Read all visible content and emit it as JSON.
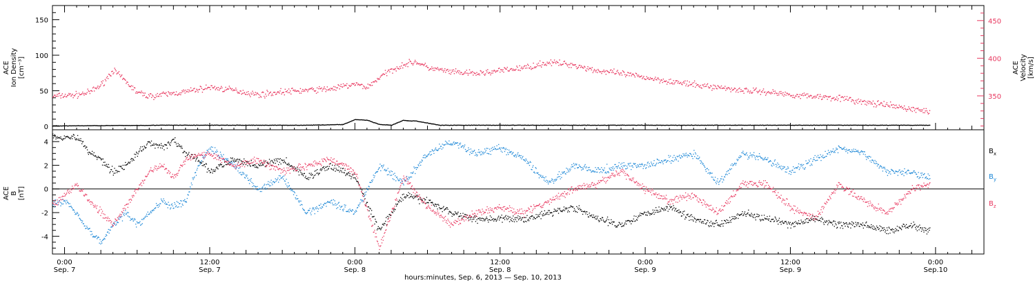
{
  "colors": {
    "density": "#000000",
    "velocity": "#e8365e",
    "bx": "#000000",
    "by": "#1a86d6",
    "bz": "#e8365e"
  },
  "top_panel": {
    "ylabel_lines": [
      "ACE",
      "Ion Density",
      "[cm⁻³]"
    ],
    "y2label_lines": [
      "ACE",
      "Velocity",
      "[km/s]"
    ]
  },
  "bottom_panel": {
    "ylabel_lines": [
      "ACE",
      "B",
      "[nT]"
    ],
    "legend": [
      "Bx",
      "By",
      "Bz"
    ]
  },
  "x_axis": {
    "title": "hours:minutes, Sep.  6, 2013 — Sep. 10, 2013",
    "ticks": [
      {
        "hours": 0,
        "time": "0:00",
        "date": "Sep. 7"
      },
      {
        "hours": 12,
        "time": "12:00",
        "date": "Sep. 7"
      },
      {
        "hours": 24,
        "time": "0:00",
        "date": "Sep. 8"
      },
      {
        "hours": 36,
        "time": "12:00",
        "date": "Sep. 8"
      },
      {
        "hours": 48,
        "time": "0:00",
        "date": "Sep. 9"
      },
      {
        "hours": 60,
        "time": "12:00",
        "date": "Sep. 9"
      },
      {
        "hours": 72,
        "time": "0:00",
        "date": "Sep.10"
      }
    ]
  },
  "chart_data": [
    {
      "type": "scatter",
      "panel": "top",
      "xlim_hours_from_sep7_0000": [
        -1,
        76
      ],
      "ylim": [
        -5,
        170
      ],
      "yticks": [
        0,
        50,
        100,
        150
      ],
      "y2lim": [
        305,
        470
      ],
      "y2ticks": [
        350,
        400,
        450
      ],
      "series": [
        {
          "name": "Ion Density",
          "axis": "left",
          "x": [
            -1,
            8,
            20,
            23,
            24,
            25,
            26,
            27,
            28,
            28.5,
            29,
            30,
            31,
            40,
            55,
            70,
            71.5
          ],
          "y": [
            1,
            2,
            2,
            3,
            10,
            9,
            3,
            2,
            9,
            8,
            8,
            5,
            2,
            2,
            2,
            2,
            2
          ]
        },
        {
          "name": "Velocity",
          "axis": "right",
          "x": [
            -1,
            1,
            2,
            3,
            4,
            5,
            6,
            7,
            8,
            10,
            12,
            14,
            16,
            18,
            20,
            22,
            24,
            25,
            26,
            27,
            28,
            29,
            30,
            32,
            34,
            36,
            38,
            40,
            42,
            44,
            46,
            48,
            50,
            52,
            54,
            56,
            58,
            60,
            62,
            64,
            66,
            68,
            70,
            71.5
          ],
          "y": [
            350,
            352,
            355,
            365,
            385,
            370,
            355,
            350,
            352,
            356,
            362,
            358,
            352,
            356,
            358,
            360,
            366,
            362,
            375,
            385,
            392,
            396,
            388,
            382,
            380,
            384,
            388,
            395,
            392,
            384,
            380,
            375,
            370,
            365,
            362,
            358,
            356,
            352,
            350,
            348,
            342,
            338,
            333,
            330
          ]
        }
      ]
    },
    {
      "type": "scatter",
      "panel": "bottom",
      "xlim_hours_from_sep7_0000": [
        -1,
        76
      ],
      "ylim": [
        -5.5,
        5
      ],
      "yticks": [
        -4,
        -2,
        0,
        2,
        4
      ],
      "series": [
        {
          "name": "Bx",
          "x": [
            -1,
            0,
            1,
            2,
            3,
            4,
            5,
            6,
            7,
            8,
            9,
            10,
            11,
            12,
            14,
            16,
            18,
            20,
            22,
            24,
            26,
            28,
            30,
            32,
            34,
            36,
            38,
            40,
            42,
            44,
            46,
            48,
            50,
            52,
            54,
            56,
            58,
            60,
            62,
            64,
            66,
            68,
            70,
            71.5
          ],
          "y": [
            4.5,
            4.4,
            4.4,
            3.2,
            2.5,
            1.5,
            2.0,
            3.0,
            4.0,
            3.5,
            4.2,
            3.0,
            2.5,
            1.5,
            2.5,
            2.0,
            2.5,
            1.0,
            2.0,
            1.0,
            -3.5,
            -0.5,
            -1.0,
            -2.0,
            -2.5,
            -2.5,
            -2.5,
            -2.0,
            -1.5,
            -2.5,
            -3.0,
            -2.0,
            -1.5,
            -2.5,
            -3.0,
            -2.0,
            -2.5,
            -3.0,
            -2.5,
            -3.0,
            -3.0,
            -3.5,
            -3.0,
            -3.5
          ]
        },
        {
          "name": "By",
          "x": [
            -1,
            0,
            1,
            2,
            3,
            4,
            5,
            6,
            7,
            8,
            9,
            10,
            11,
            12,
            14,
            16,
            18,
            20,
            22,
            24,
            26,
            28,
            30,
            32,
            34,
            36,
            38,
            40,
            42,
            44,
            46,
            48,
            50,
            52,
            54,
            56,
            58,
            60,
            62,
            64,
            66,
            68,
            70,
            71.5
          ],
          "y": [
            -1.2,
            -1.0,
            -2.0,
            -3.5,
            -4.5,
            -3.0,
            -2.0,
            -3.0,
            -2.0,
            -1.0,
            -1.5,
            -1.0,
            2.0,
            3.5,
            2.0,
            0.0,
            1.0,
            -2.0,
            -1.0,
            -2.0,
            2.0,
            0.5,
            3.0,
            4.0,
            3.0,
            3.5,
            2.5,
            0.5,
            2.0,
            1.5,
            2.0,
            2.0,
            2.5,
            3.0,
            0.5,
            3.0,
            2.5,
            1.5,
            2.5,
            3.5,
            3.0,
            1.5,
            1.5,
            1.0
          ]
        },
        {
          "name": "Bz",
          "x": [
            -1,
            0,
            1,
            2,
            3,
            4,
            5,
            6,
            7,
            8,
            9,
            10,
            11,
            12,
            14,
            16,
            18,
            20,
            22,
            24,
            26,
            28,
            30,
            32,
            34,
            36,
            38,
            40,
            42,
            44,
            46,
            48,
            50,
            52,
            54,
            56,
            58,
            60,
            62,
            64,
            66,
            68,
            70,
            71.5
          ],
          "y": [
            -1.3,
            -0.5,
            0.5,
            -1.0,
            -2.0,
            -3.0,
            -1.5,
            0.0,
            1.5,
            2.0,
            1.0,
            2.5,
            3.0,
            3.0,
            2.0,
            2.5,
            1.5,
            2.0,
            2.5,
            1.5,
            -5.0,
            1.0,
            -1.5,
            -3.0,
            -2.0,
            -1.5,
            -2.0,
            -1.0,
            0.0,
            0.5,
            1.5,
            0.0,
            -1.0,
            -0.5,
            -2.0,
            0.5,
            0.5,
            -1.5,
            -2.5,
            0.5,
            -1.0,
            -2.0,
            0.0,
            0.5
          ]
        }
      ]
    }
  ]
}
